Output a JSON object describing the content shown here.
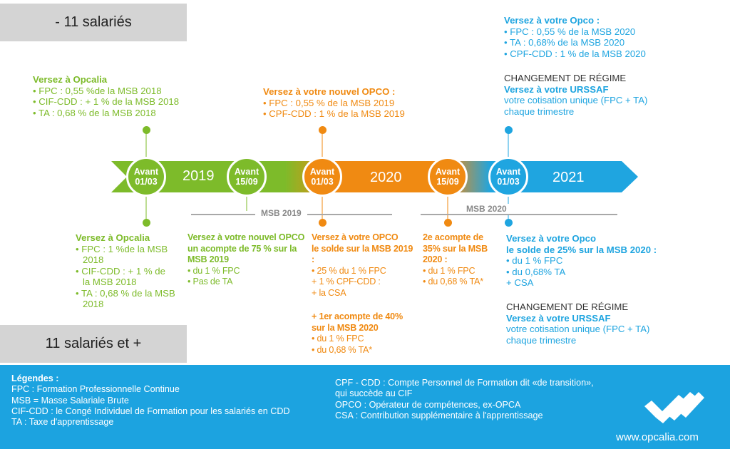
{
  "headers": {
    "small": "- 11 salariés",
    "large": "11 salariés et +"
  },
  "timeline": {
    "years": [
      "2019",
      "2020",
      "2021"
    ],
    "milestones": [
      {
        "line1": "Avant",
        "line2": "01/03",
        "color": "#7dbb2a"
      },
      {
        "line1": "Avant",
        "line2": "15/09",
        "color": "#7dbb2a"
      },
      {
        "line1": "Avant",
        "line2": "01/03",
        "color": "#f08a12"
      },
      {
        "line1": "Avant",
        "line2": "15/09",
        "color": "#f08a12"
      },
      {
        "line1": "Avant",
        "line2": "01/03",
        "color": "#1fa5e0"
      }
    ],
    "msb_labels": [
      "MSB 2019",
      "MSB 2020"
    ]
  },
  "top": {
    "green": {
      "title": "Versez à Opcalia",
      "lines": [
        "• FPC : 0,55 %de la MSB 2018",
        "•  CIF-CDD : + 1 % de la MSB 2018",
        "• TA : 0,68 % de la MSB 2018"
      ]
    },
    "orange": {
      "title": "Versez à votre nouvel OPCO :",
      "lines": [
        "• FPC : 0,55 % de la MSB 2019",
        "• CPF-CDD : 1 % de la MSB 2019"
      ]
    },
    "blue": {
      "title": "Versez à votre Opco :",
      "lines": [
        "• FPC : 0,55 % de la MSB 2020",
        "• TA : 0,68% de la MSB 2020",
        "• CPF-CDD : 1 % de la MSB 2020"
      ],
      "regime": "CHANGEMENT DE RÉGIME",
      "urssaf": "Versez à votre URSSAF",
      "urssaf_lines": [
        "votre cotisation unique (FPC + TA)",
        "chaque trimestre"
      ]
    }
  },
  "bottom": {
    "green": {
      "title": "Versez à Opcalia",
      "lines": [
        "• FPC : 1 %de la MSB",
        "2018",
        "•  CIF-CDD : + 1 % de",
        "la MSB 2018",
        "• TA : 0,68 % de la MSB",
        "2018"
      ]
    },
    "green2": {
      "title_lines": [
        "Versez à votre nouvel OPCO",
        "un acompte de 75 % sur la",
        "MSB 2019"
      ],
      "lines": [
        "• du 1 % FPC",
        "• Pas de TA"
      ]
    },
    "orange1": {
      "title_lines": [
        "Versez à votre OPCO",
        "le solde sur la MSB 2019",
        ":"
      ],
      "lines": [
        "• 25 % du 1 % FPC",
        "+ 1 % CPF-CDD :",
        "+ la CSA"
      ],
      "extra_title": [
        " + 1er acompte de 40%",
        "sur la MSB 2020"
      ],
      "extra_lines": [
        "• du 1 % FPC",
        "• du 0,68 % TA*"
      ]
    },
    "orange2": {
      "title_lines": [
        "2e acompte  de",
        "35% sur la MSB",
        "2020 :"
      ],
      "lines": [
        "• du 1 % FPC",
        "• du 0,68 % TA*"
      ]
    },
    "blue": {
      "title_lines": [
        "Versez à votre Opco",
        "le solde de 25% sur la MSB 2020 :"
      ],
      "lines": [
        "• du 1 % FPC",
        "• du 0,68% TA",
        "+ CSA"
      ],
      "regime": "CHANGEMENT DE RÉGIME",
      "urssaf": "Versez à votre URSSAF",
      "urssaf_lines": [
        "votre cotisation unique (FPC + TA)",
        "chaque trimestre"
      ]
    }
  },
  "legend": {
    "title": "Légendes :",
    "left": [
      "FPC : Formation Professionnelle Continue",
      "MSB = Masse Salariale Brute",
      "CIF-CDD : le Congé Individuel de Formation pour les salariés en CDD",
      "TA  : Taxe d'apprentissage"
    ],
    "right": [
      "CPF - CDD : Compte Personnel de Formation dit «de transition»,",
      "qui succède au CIF",
      "OPCO : Opérateur de compétences, ex-OPCA",
      "CSA : Contribution supplémentaire à l'apprentissage"
    ],
    "website": "www.opcalia.com"
  },
  "colors": {
    "green": "#7dbb2a",
    "orange": "#f08a12",
    "blue": "#1fa5e0",
    "legend_bg": "#1ca3e0",
    "header_bg": "#d4d4d4"
  }
}
